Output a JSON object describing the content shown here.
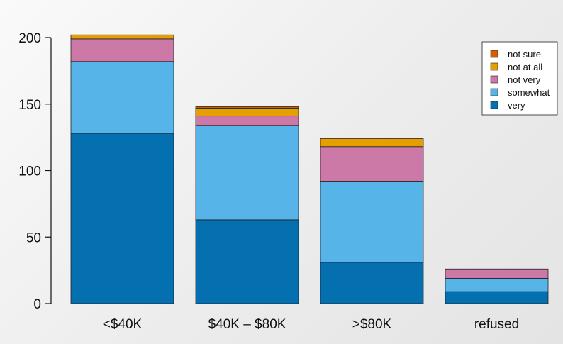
{
  "chart_data": {
    "type": "bar",
    "stacked": true,
    "title": "",
    "xlabel": "",
    "ylabel": "",
    "categories": [
      "<$40K",
      "$40K – $80K",
      ">$80K",
      "refused"
    ],
    "ylim": [
      0,
      200
    ],
    "yticks": [
      0,
      50,
      100,
      150,
      200
    ],
    "grid": false,
    "legend_position": "top-right",
    "series": [
      {
        "name": "very",
        "color": "#0570b0",
        "values": [
          128,
          63,
          31,
          9
        ]
      },
      {
        "name": "somewhat",
        "color": "#56b4e9",
        "values": [
          54,
          71,
          61,
          10
        ]
      },
      {
        "name": "not very",
        "color": "#cc79a7",
        "values": [
          17,
          7,
          26,
          7
        ]
      },
      {
        "name": "not at all",
        "color": "#e69f00",
        "values": [
          3,
          6,
          6,
          0
        ]
      },
      {
        "name": "not sure",
        "color": "#d55e00",
        "values": [
          0,
          1,
          0,
          0
        ]
      }
    ],
    "legend_order": [
      "not sure",
      "not at all",
      "not very",
      "somewhat",
      "very"
    ]
  }
}
